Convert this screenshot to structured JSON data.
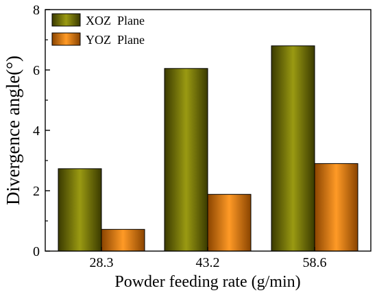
{
  "chart_data": {
    "type": "bar",
    "title": "",
    "xlabel": "Powder feeding rate (g/min)",
    "ylabel": "Divergence angle(°)",
    "categories": [
      "28.3",
      "43.2",
      "58.6"
    ],
    "ylim": [
      0,
      8
    ],
    "yticks": [
      "0",
      "2",
      "4",
      "6",
      "8"
    ],
    "grid": false,
    "legend_position": "top-left",
    "series": [
      {
        "name": "XOZ  Plane",
        "values": [
          2.73,
          6.05,
          6.8
        ],
        "color_top": "#9a9a12",
        "color_mid": "#7e7e05",
        "color_edge": "#3a3a00"
      },
      {
        "name": "YOZ  Plane",
        "values": [
          0.72,
          1.88,
          2.9
        ],
        "color_top": "#ff9a26",
        "color_mid": "#ff8800",
        "color_edge": "#8a4400"
      }
    ]
  }
}
